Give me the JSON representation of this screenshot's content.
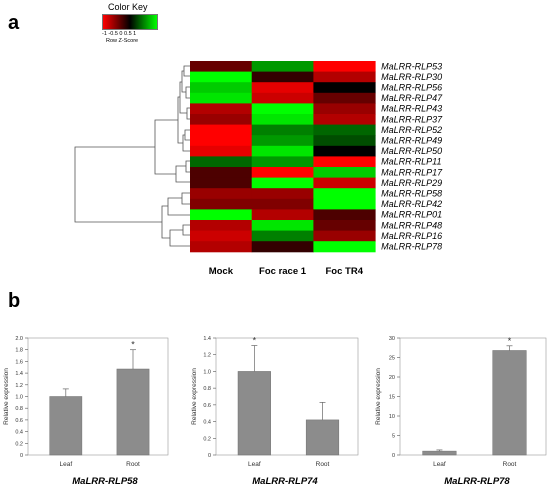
{
  "panel_a_label": "a",
  "panel_b_label": "b",
  "color_key": {
    "title": "Color Key",
    "ticks": "-1 -0.5  0  0.5  1",
    "label": "Row Z-Score",
    "colors": {
      "low": "#ff0000",
      "mid": "#000000",
      "high": "#00ff00"
    }
  },
  "chart_data": [
    {
      "type": "heatmap",
      "columns": [
        "Mock",
        "Foc race 1",
        "Foc TR4"
      ],
      "rows": [
        "MaLRR-RLP53",
        "MaLRR-RLP30",
        "MaLRR-RLP56",
        "MaLRR-RLP47",
        "MaLRR-RLP43",
        "MaLRR-RLP37",
        "MaLRR-RLP52",
        "MaLRR-RLP49",
        "MaLRR-RLP50",
        "MaLRR-RLP11",
        "MaLRR-RLP17",
        "MaLRR-RLP29",
        "MaLRR-RLP58",
        "MaLRR-RLP42",
        "MaLRR-RLP01",
        "MaLRR-RLP48",
        "MaLRR-RLP16",
        "MaLRR-RLP78"
      ],
      "values": [
        [
          -0.4,
          0.6,
          -1.0
        ],
        [
          1.0,
          -0.2,
          -0.7
        ],
        [
          0.8,
          -0.9,
          0.0
        ],
        [
          0.9,
          -0.8,
          -0.4
        ],
        [
          -0.7,
          1.0,
          -0.6
        ],
        [
          -0.6,
          0.9,
          -0.7
        ],
        [
          -1.0,
          0.5,
          0.4
        ],
        [
          -1.0,
          0.6,
          0.3
        ],
        [
          -0.9,
          0.9,
          0.0
        ],
        [
          0.4,
          0.6,
          -1.0
        ],
        [
          -0.3,
          -1.0,
          0.8
        ],
        [
          -0.3,
          1.0,
          -0.8
        ],
        [
          -0.6,
          -0.6,
          1.0
        ],
        [
          -0.5,
          -0.5,
          1.0
        ],
        [
          1.0,
          -0.7,
          -0.3
        ],
        [
          -0.7,
          0.9,
          -0.4
        ],
        [
          -0.8,
          0.5,
          -0.6
        ],
        [
          -0.7,
          -0.2,
          1.0
        ]
      ],
      "color_range": [
        -1,
        1
      ]
    },
    {
      "type": "bar",
      "title": "MaLRR-RLP58",
      "ylabel": "Relative expression",
      "categories": [
        "Leaf",
        "Root"
      ],
      "values": [
        1.0,
        1.47
      ],
      "errors": [
        0.13,
        0.33
      ],
      "significance": [
        "",
        "*"
      ],
      "ylim": [
        0,
        2.0
      ],
      "yticks": [
        "0",
        "0.2",
        "0.4",
        "0.6",
        "0.8",
        "1.0",
        "1.2",
        "1.4",
        "1.6",
        "1.8",
        "2.0"
      ]
    },
    {
      "type": "bar",
      "title": "MaLRR-RLP74",
      "ylabel": "Relative expression",
      "categories": [
        "Leaf",
        "Root"
      ],
      "values": [
        1.0,
        0.42
      ],
      "errors": [
        0.31,
        0.21
      ],
      "significance": [
        "*",
        ""
      ],
      "ylim": [
        0,
        1.4
      ],
      "yticks": [
        "0",
        "0.2",
        "0.4",
        "0.6",
        "0.8",
        "1.0",
        "1.2",
        "1.4"
      ]
    },
    {
      "type": "bar",
      "title": "MaLRR-RLP78",
      "ylabel": "Relative expression",
      "categories": [
        "Leaf",
        "Root"
      ],
      "values": [
        1.0,
        26.8
      ],
      "errors": [
        0.3,
        1.2
      ],
      "significance": [
        "",
        "*"
      ],
      "ylim": [
        0,
        30
      ],
      "yticks": [
        "0",
        "5",
        "10",
        "15",
        "20",
        "25",
        "30"
      ]
    }
  ]
}
